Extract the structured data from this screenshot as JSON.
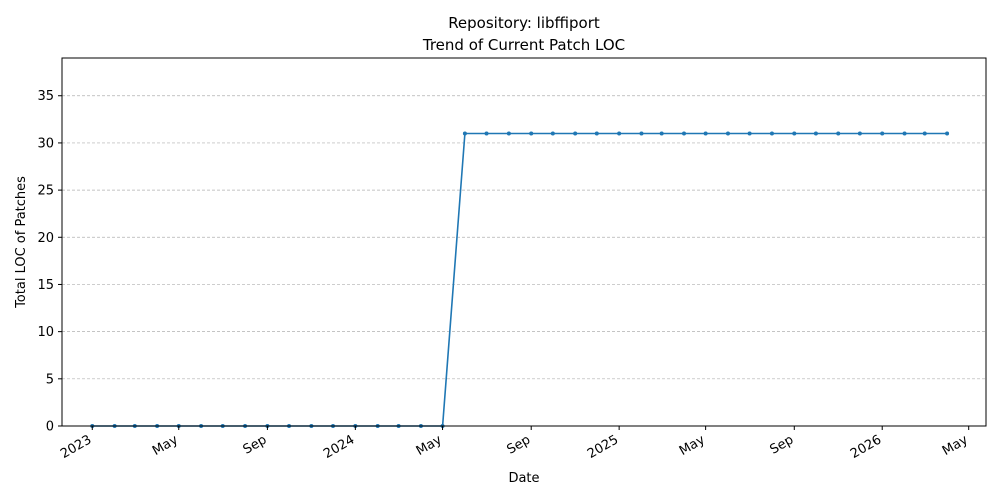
{
  "chart_data": {
    "type": "line",
    "title": "Repository: libffiport",
    "subtitle": "Trend of Current Patch LOC",
    "xlabel": "Date",
    "ylabel": "Total LOC of Patches",
    "ylim": [
      0,
      39
    ],
    "yticks": [
      0,
      5,
      10,
      15,
      20,
      25,
      30,
      35
    ],
    "xlim": [
      "2022-11-20",
      "2026-05-25"
    ],
    "xticks": [
      {
        "date": "2023-01-01",
        "label": "2023"
      },
      {
        "date": "2023-05-01",
        "label": "May"
      },
      {
        "date": "2023-09-01",
        "label": "Sep"
      },
      {
        "date": "2024-01-01",
        "label": "2024"
      },
      {
        "date": "2024-05-01",
        "label": "May"
      },
      {
        "date": "2024-09-01",
        "label": "Sep"
      },
      {
        "date": "2025-01-01",
        "label": "2025"
      },
      {
        "date": "2025-05-01",
        "label": "May"
      },
      {
        "date": "2025-09-01",
        "label": "Sep"
      },
      {
        "date": "2026-01-01",
        "label": "2026"
      },
      {
        "date": "2026-05-01",
        "label": "May"
      }
    ],
    "grid": "y-dashed",
    "color": "#1f77b4",
    "series": [
      {
        "x": [
          "2023-01-01",
          "2023-02-01",
          "2023-03-01",
          "2023-04-01",
          "2023-05-01",
          "2023-06-01",
          "2023-07-01",
          "2023-08-01",
          "2023-09-01",
          "2023-10-01",
          "2023-11-01",
          "2023-12-01",
          "2024-01-01",
          "2024-02-01",
          "2024-03-01",
          "2024-04-01",
          "2024-05-01",
          "2024-06-01",
          "2024-07-01",
          "2024-08-01",
          "2024-09-01",
          "2024-10-01",
          "2024-11-01",
          "2024-12-01",
          "2025-01-01",
          "2025-02-01",
          "2025-03-01",
          "2025-04-01",
          "2025-05-01",
          "2025-06-01",
          "2025-07-01",
          "2025-08-01",
          "2025-09-01",
          "2025-10-01",
          "2025-11-01",
          "2025-12-01",
          "2026-01-01",
          "2026-02-01",
          "2026-03-01",
          "2026-04-01"
        ],
        "values": [
          0,
          0,
          0,
          0,
          0,
          0,
          0,
          0,
          0,
          0,
          0,
          0,
          0,
          0,
          0,
          0,
          0,
          31,
          31,
          31,
          31,
          31,
          31,
          31,
          31,
          31,
          31,
          31,
          31,
          31,
          31,
          31,
          31,
          31,
          31,
          31,
          31,
          31,
          31,
          31
        ]
      }
    ]
  }
}
